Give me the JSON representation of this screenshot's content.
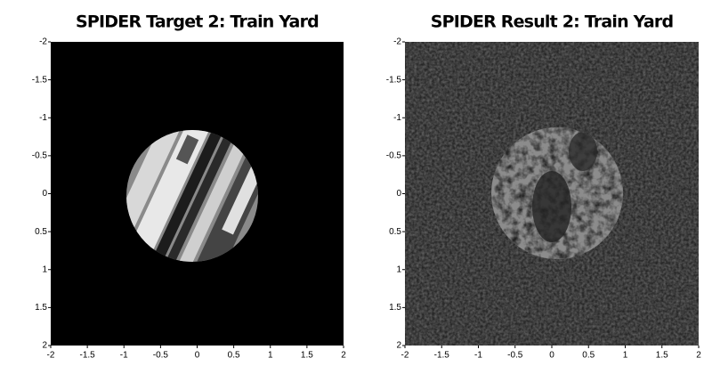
{
  "chart_data": [
    {
      "type": "image",
      "title": "SPIDER Target 2: Train Yard",
      "xlim": [
        -2,
        2
      ],
      "ylim": [
        -2,
        2
      ],
      "yreverse": true,
      "xticks": [
        -2,
        -1.5,
        -1,
        -0.5,
        0,
        0.5,
        1,
        1.5,
        2
      ],
      "yticks": [
        -2,
        -1.5,
        -1,
        -0.5,
        0,
        0.5,
        1,
        1.5,
        2
      ]
    },
    {
      "type": "image",
      "title": "SPIDER Result 2: Train Yard",
      "xlim": [
        -2,
        2
      ],
      "ylim": [
        -2,
        2
      ],
      "yreverse": true,
      "xticks": [
        -2,
        -1.5,
        -1,
        -0.5,
        0,
        0.5,
        1,
        1.5,
        2
      ],
      "yticks": [
        -2,
        -1.5,
        -1,
        -0.5,
        0,
        0.5,
        1,
        1.5,
        2
      ]
    }
  ]
}
